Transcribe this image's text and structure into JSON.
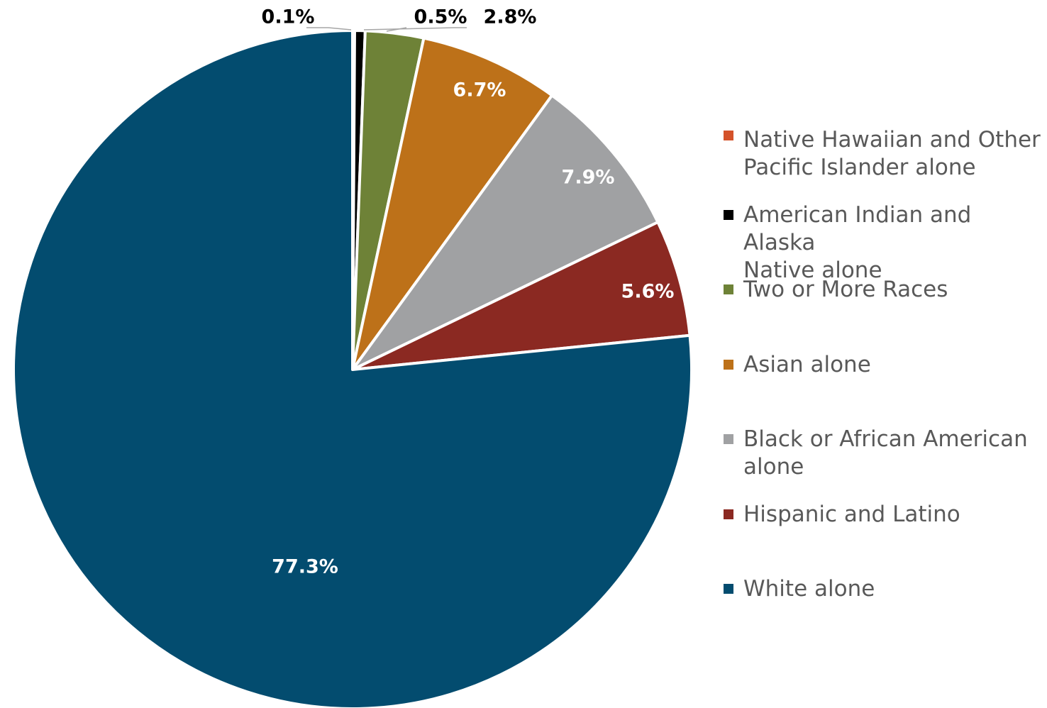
{
  "chart_data": {
    "type": "pie",
    "title": "",
    "legend_position": "right",
    "slices": [
      {
        "label": "Native Hawaiian and Other Pacific Islander alone",
        "value": 0.1,
        "value_label": "0.1%",
        "color": "#D4522A"
      },
      {
        "label": "American Indian and Alaska Native alone",
        "value": 0.5,
        "value_label": "0.5%",
        "color": "#000000"
      },
      {
        "label": "Two or More Races",
        "value": 2.8,
        "value_label": "2.8%",
        "color": "#6E8237"
      },
      {
        "label": "Asian alone",
        "value": 6.7,
        "value_label": "6.7%",
        "color": "#BD7119"
      },
      {
        "label": "Black or African American alone",
        "value": 7.9,
        "value_label": "7.9%",
        "color": "#A0A1A3"
      },
      {
        "label": "Hispanic and Latino",
        "value": 5.6,
        "value_label": "5.6%",
        "color": "#8B2922"
      },
      {
        "label": "White alone",
        "value": 77.3,
        "value_label": "77.3%",
        "color": "#034C6F"
      }
    ],
    "legend_lines": [
      [
        "Native Hawaiian and Other",
        "Pacific Islander alone"
      ],
      [
        "American Indian and Alaska",
        "Native alone"
      ],
      [
        "Two or More Races"
      ],
      [
        "Asian alone"
      ],
      [
        "Black or African American",
        "alone"
      ],
      [
        "Hispanic and Latino"
      ],
      [
        "White alone"
      ]
    ]
  }
}
